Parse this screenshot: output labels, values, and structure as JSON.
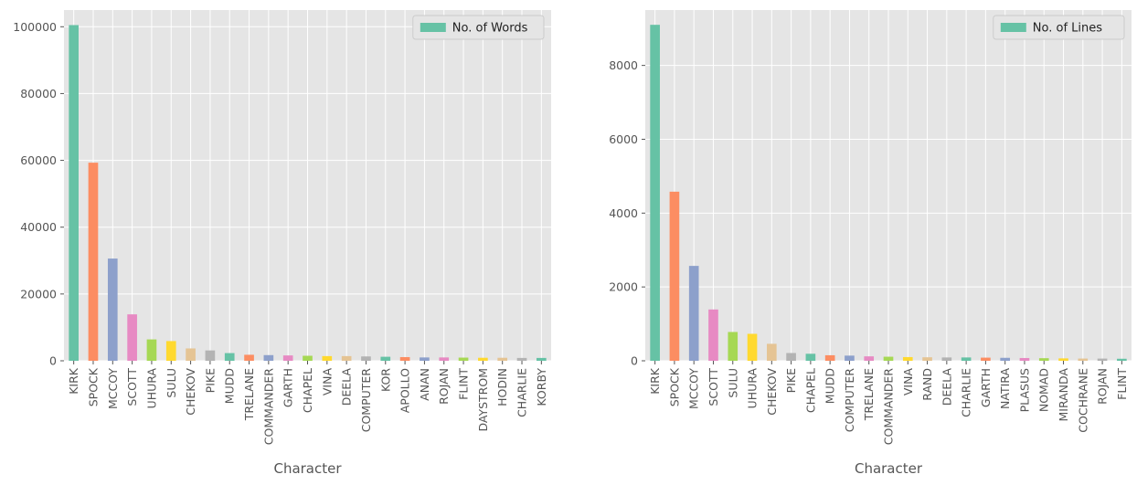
{
  "chart_data": [
    {
      "type": "bar",
      "xlabel": "Character",
      "ylabel": "",
      "ylim": [
        0,
        105000
      ],
      "yticks": [
        0,
        20000,
        40000,
        60000,
        80000,
        100000
      ],
      "grid": true,
      "legend_position": "top-right",
      "categories": [
        "KIRK",
        "SPOCK",
        "MCCOY",
        "SCOTT",
        "UHURA",
        "SULU",
        "CHEKOV",
        "PIKE",
        "MUDD",
        "TRELANE",
        "COMMANDER",
        "GARTH",
        "CHAPEL",
        "VINA",
        "DEELA",
        "COMPUTER",
        "KOR",
        "APOLLO",
        "ANAN",
        "ROJAN",
        "FLINT",
        "DAYSTROM",
        "HODIN",
        "CHARLIE",
        "KORBY"
      ],
      "series": [
        {
          "name": "No. of Words",
          "values": [
            100500,
            59300,
            30600,
            13900,
            6400,
            5900,
            3700,
            3100,
            2300,
            1800,
            1700,
            1600,
            1500,
            1400,
            1400,
            1300,
            1200,
            1100,
            1000,
            1000,
            950,
            900,
            900,
            850,
            850
          ]
        }
      ]
    },
    {
      "type": "bar",
      "xlabel": "Character",
      "ylabel": "",
      "ylim": [
        0,
        9500
      ],
      "yticks": [
        0,
        2000,
        4000,
        6000,
        8000
      ],
      "grid": true,
      "legend_position": "top-right",
      "categories": [
        "KIRK",
        "SPOCK",
        "MCCOY",
        "SCOTT",
        "SULU",
        "UHURA",
        "CHEKOV",
        "PIKE",
        "CHAPEL",
        "MUDD",
        "COMPUTER",
        "TRELANE",
        "COMMANDER",
        "VINA",
        "RAND",
        "DEELA",
        "CHARLIE",
        "GARTH",
        "NATIRA",
        "PLASUS",
        "NOMAD",
        "MIRANDA",
        "COCHRANE",
        "ROJAN",
        "FLINT"
      ],
      "series": [
        {
          "name": "No. of Lines",
          "values": [
            9100,
            4580,
            2570,
            1390,
            780,
            730,
            460,
            210,
            190,
            150,
            140,
            120,
            110,
            100,
            95,
            90,
            90,
            85,
            80,
            75,
            70,
            65,
            60,
            60,
            55
          ]
        }
      ]
    }
  ],
  "palette": [
    "#66c2a5",
    "#fc8d62",
    "#8da0cb",
    "#e78ac3",
    "#a6d854",
    "#ffd92f",
    "#e5c494",
    "#b3b3b3"
  ],
  "style": {
    "panel_bg": "#e5e5e5",
    "grid_color": "#ffffff",
    "text_color": "#555555"
  }
}
